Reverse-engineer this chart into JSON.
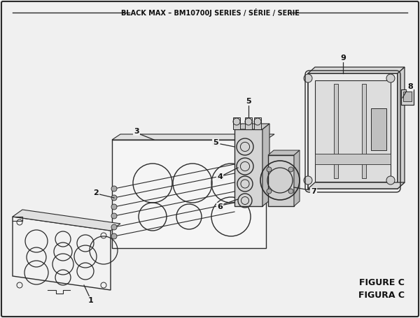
{
  "title": "BLACK MAX – BM10700J SERIES / SÉRIE / SERIE",
  "figure_label": "FIGURE C",
  "figura_label": "FIGURA C",
  "bg_color": "#f0f0f0",
  "border_color": "#1a1a1a",
  "line_color": "#2a2a2a",
  "fill_light": "#e8e8e8",
  "fill_mid": "#d8d8d8",
  "fill_dark": "#c5c5c5"
}
